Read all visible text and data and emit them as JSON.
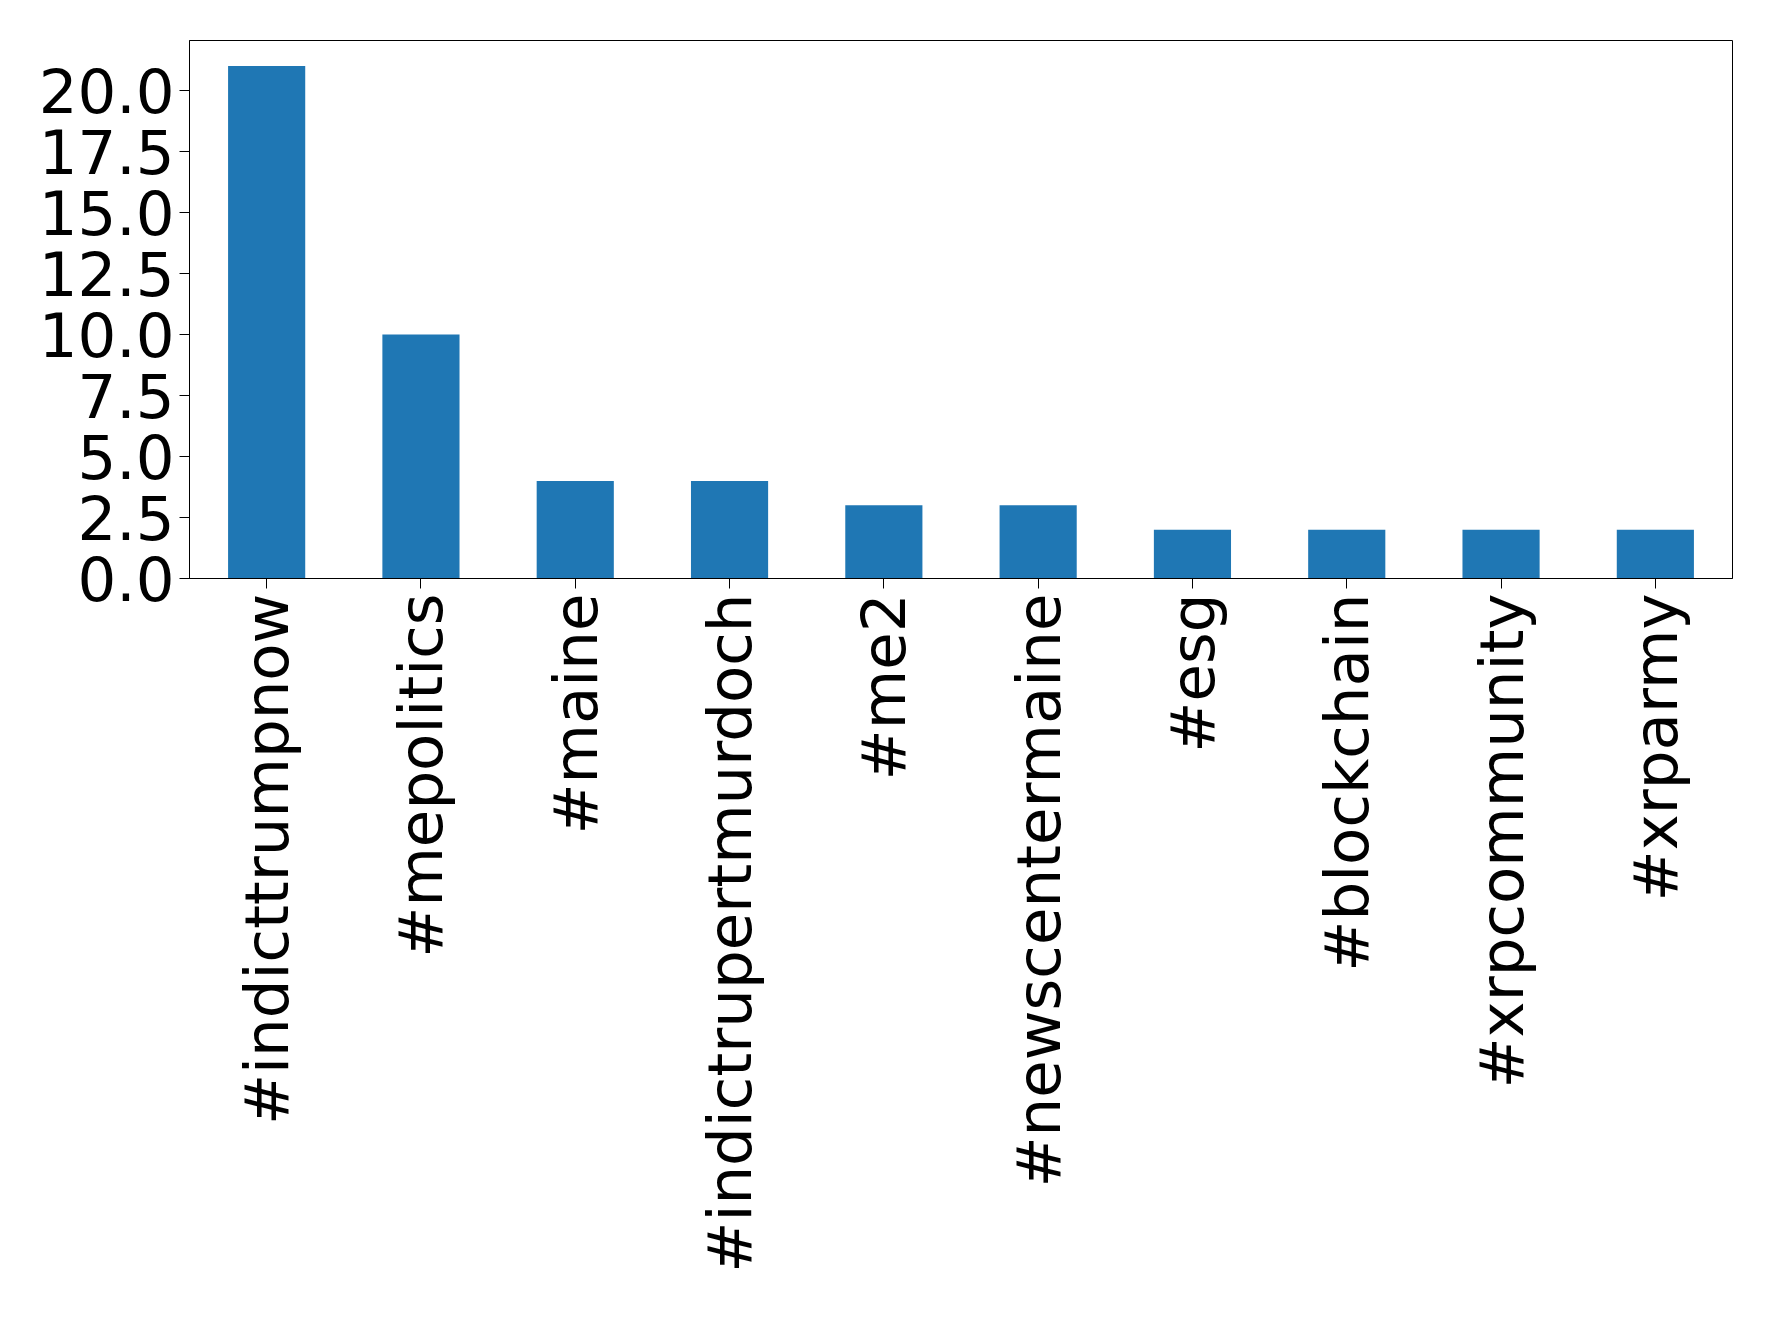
{
  "chart_data": {
    "type": "bar",
    "categories": [
      "#indicttrumpnow",
      "#mepolitics",
      "#maine",
      "#indictrupertmurdoch",
      "#me2",
      "#newscentermaine",
      "#esg",
      "#blockchain",
      "#xrpcommunity",
      "#xrparmy"
    ],
    "values": [
      21,
      10,
      4,
      4,
      3,
      3,
      2,
      2,
      2,
      2
    ],
    "color": "#1f77b4",
    "ylim": [
      0,
      22.05
    ],
    "yticks": [
      {
        "value": 0,
        "label": "0.0"
      },
      {
        "value": 2.5,
        "label": "2.5"
      },
      {
        "value": 5,
        "label": "5.0"
      },
      {
        "value": 7.5,
        "label": "7.5"
      },
      {
        "value": 10,
        "label": "10.0"
      },
      {
        "value": 12.5,
        "label": "12.5"
      },
      {
        "value": 15,
        "label": "15.0"
      },
      {
        "value": 17.5,
        "label": "17.5"
      },
      {
        "value": 20,
        "label": "20.0"
      }
    ],
    "grid": false
  }
}
